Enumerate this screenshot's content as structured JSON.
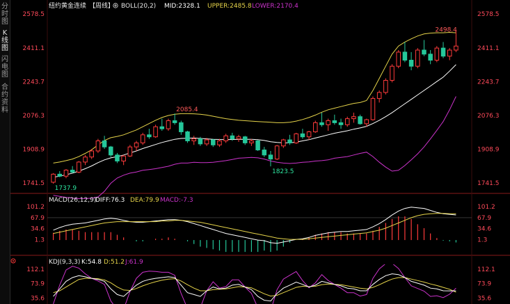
{
  "sidebar": {
    "tabs": [
      {
        "label": "分时图",
        "chars": [
          "分",
          "时",
          "图"
        ],
        "active": false
      },
      {
        "label": "K线图",
        "chars": [
          "K",
          "线",
          "图"
        ],
        "active": true
      },
      {
        "label": "闪电图",
        "chars": [
          "闪",
          "电",
          "图"
        ],
        "active": false
      },
      {
        "label": "合约资料",
        "chars": [
          "合",
          "约",
          "资",
          "料"
        ],
        "active": false
      }
    ]
  },
  "main_panel": {
    "symbol": "纽约黄金连续",
    "period": "【周线】",
    "bookmark_icon": "circle-plus-icon",
    "boll_label": "BOLL(20,2)",
    "mid_label": "MID:2328.1",
    "upper_label": "UPPER:2485.8",
    "lower_label": "LOWER:2170.4",
    "y_ticks_left": [
      "2578.5",
      "2411.1",
      "2243.7",
      "2076.3",
      "1908.9",
      "1741.5"
    ],
    "y_ticks_right": [
      "2578.5",
      "2411.1",
      "2243.7",
      "2076.3",
      "1908.9",
      "1741.5"
    ],
    "annotations": {
      "high_recent": "2498.4",
      "high_mid": "2085.4",
      "low_mid": "1823.5",
      "low_start": "1737.9"
    }
  },
  "macd_panel": {
    "label": "MACD(26,12,9)",
    "diff_label": "DIFF:76.3",
    "dea_label": "DEA:79.9",
    "macd_label": "MACD:-7.3",
    "y_ticks_left": [
      "101.2",
      "67.9",
      "34.6",
      "1.3"
    ],
    "y_ticks_right": [
      "101.2",
      "67.9",
      "34.6",
      "1.3"
    ]
  },
  "kdj_panel": {
    "label": "KDJ(9,3,3)",
    "k_label": "K:54.8",
    "d_label": "D:51.2",
    "j_label": "J:61.9",
    "y_ticks_left": [
      "112.1",
      "73.9",
      "35.6"
    ],
    "y_ticks_right": [
      "112.1",
      "73.9",
      "35.6"
    ]
  },
  "colors": {
    "background": "#000000",
    "up": "#ff3b3b",
    "down": "#25c79a",
    "text": "#e6e6e6",
    "axis_text": "#ff4a5a",
    "mid": "#ffffff",
    "upper": "#e6d44a",
    "lower": "#cc33cc",
    "diff": "#ffffff",
    "dea": "#e6d44a",
    "macd_label": "#cc33cc",
    "j": "#cc33cc",
    "divider": "#8a1a1a",
    "annotation_high": "#ff5a5a",
    "annotation_low": "#2ee6a0"
  },
  "chart_data": [
    {
      "type": "candlestick",
      "title": "纽约黄金连续【周线】",
      "ylim": [
        1700,
        2600
      ],
      "ohlc": [
        [
          1745,
          1790,
          1737.9,
          1785
        ],
        [
          1785,
          1800,
          1770,
          1775
        ],
        [
          1775,
          1810,
          1765,
          1805
        ],
        [
          1805,
          1825,
          1790,
          1795
        ],
        [
          1795,
          1850,
          1790,
          1845
        ],
        [
          1845,
          1880,
          1830,
          1870
        ],
        [
          1870,
          1910,
          1860,
          1900
        ],
        [
          1900,
          1960,
          1890,
          1950
        ],
        [
          1950,
          1975,
          1910,
          1920
        ],
        [
          1920,
          1925,
          1870,
          1880
        ],
        [
          1880,
          1890,
          1840,
          1850
        ],
        [
          1850,
          1880,
          1830,
          1875
        ],
        [
          1875,
          1930,
          1870,
          1920
        ],
        [
          1920,
          1950,
          1900,
          1940
        ],
        [
          1940,
          1990,
          1930,
          1980
        ],
        [
          1980,
          2010,
          1960,
          1970
        ],
        [
          1970,
          2030,
          1965,
          2020
        ],
        [
          2020,
          2060,
          2000,
          2010
        ],
        [
          2010,
          2060,
          2000,
          2050
        ],
        [
          2050,
          2085.4,
          2030,
          2040
        ],
        [
          2040,
          2050,
          1980,
          1995
        ],
        [
          1995,
          2000,
          1940,
          1950
        ],
        [
          1950,
          1975,
          1930,
          1960
        ],
        [
          1960,
          1970,
          1925,
          1935
        ],
        [
          1935,
          1965,
          1925,
          1955
        ],
        [
          1955,
          1960,
          1920,
          1930
        ],
        [
          1930,
          1960,
          1920,
          1950
        ],
        [
          1950,
          1985,
          1940,
          1975
        ],
        [
          1975,
          1990,
          1950,
          1960
        ],
        [
          1960,
          1980,
          1945,
          1970
        ],
        [
          1970,
          1975,
          1930,
          1940
        ],
        [
          1940,
          1960,
          1925,
          1950
        ],
        [
          1950,
          1955,
          1900,
          1905
        ],
        [
          1905,
          1920,
          1870,
          1880
        ],
        [
          1880,
          1900,
          1823.5,
          1860
        ],
        [
          1860,
          1930,
          1855,
          1925
        ],
        [
          1925,
          1960,
          1915,
          1955
        ],
        [
          1955,
          1980,
          1930,
          1940
        ],
        [
          1940,
          1990,
          1935,
          1985
        ],
        [
          1985,
          2010,
          1960,
          1970
        ],
        [
          1970,
          2000,
          1955,
          1995
        ],
        [
          1995,
          2050,
          1990,
          2040
        ],
        [
          2040,
          2090,
          2020,
          2030
        ],
        [
          2030,
          2060,
          2000,
          2050
        ],
        [
          2050,
          2080,
          2030,
          2040
        ],
        [
          2040,
          2060,
          2010,
          2030
        ],
        [
          2030,
          2070,
          2020,
          2060
        ],
        [
          2060,
          2090,
          2040,
          2070
        ],
        [
          2070,
          2080,
          2030,
          2035
        ],
        [
          2035,
          2060,
          2020,
          2055
        ],
        [
          2055,
          2170,
          2050,
          2160
        ],
        [
          2160,
          2200,
          2140,
          2190
        ],
        [
          2190,
          2260,
          2180,
          2250
        ],
        [
          2250,
          2330,
          2240,
          2320
        ],
        [
          2320,
          2400,
          2310,
          2390
        ],
        [
          2390,
          2440,
          2340,
          2350
        ],
        [
          2350,
          2390,
          2300,
          2320
        ],
        [
          2320,
          2410,
          2310,
          2400
        ],
        [
          2400,
          2450,
          2370,
          2380
        ],
        [
          2380,
          2400,
          2330,
          2350
        ],
        [
          2350,
          2420,
          2340,
          2410
        ],
        [
          2410,
          2440,
          2360,
          2370
        ],
        [
          2370,
          2410,
          2350,
          2400
        ],
        [
          2400,
          2498.4,
          2390,
          2420
        ]
      ],
      "mid": [
        1770,
        1775,
        1782,
        1790,
        1800,
        1812,
        1826,
        1842,
        1856,
        1866,
        1872,
        1880,
        1890,
        1900,
        1912,
        1922,
        1932,
        1942,
        1950,
        1958,
        1962,
        1963,
        1964,
        1962,
        1960,
        1958,
        1957,
        1956,
        1957,
        1958,
        1958,
        1958,
        1956,
        1952,
        1946,
        1942,
        1940,
        1940,
        1944,
        1950,
        1956,
        1964,
        1972,
        1980,
        1988,
        1994,
        2000,
        2008,
        2014,
        2022,
        2036,
        2052,
        2070,
        2090,
        2112,
        2134,
        2156,
        2178,
        2200,
        2222,
        2244,
        2266,
        2296,
        2328.1
      ],
      "upper": [
        1840,
        1845,
        1852,
        1860,
        1872,
        1888,
        1906,
        1930,
        1952,
        1966,
        1972,
        1980,
        1992,
        2004,
        2020,
        2036,
        2052,
        2066,
        2076,
        2082,
        2085,
        2085,
        2084,
        2082,
        2078,
        2072,
        2066,
        2060,
        2056,
        2052,
        2050,
        2048,
        2046,
        2044,
        2042,
        2040,
        2040,
        2042,
        2048,
        2056,
        2066,
        2078,
        2092,
        2104,
        2112,
        2120,
        2128,
        2136,
        2140,
        2150,
        2200,
        2260,
        2320,
        2380,
        2420,
        2440,
        2456,
        2470,
        2480,
        2484,
        2486,
        2486,
        2488,
        2485.8
      ],
      "lower": [
        1680,
        1675,
        1670,
        1666,
        1664,
        1664,
        1666,
        1672,
        1700,
        1740,
        1766,
        1780,
        1790,
        1796,
        1804,
        1808,
        1812,
        1818,
        1824,
        1834,
        1840,
        1840,
        1844,
        1842,
        1842,
        1844,
        1848,
        1852,
        1858,
        1864,
        1866,
        1868,
        1866,
        1860,
        1850,
        1844,
        1840,
        1838,
        1840,
        1844,
        1846,
        1850,
        1852,
        1856,
        1864,
        1868,
        1872,
        1880,
        1888,
        1894,
        1872,
        1844,
        1820,
        1800,
        1804,
        1828,
        1856,
        1886,
        1920,
        1960,
        2002,
        2046,
        2104,
        2170.4
      ]
    },
    {
      "type": "macd",
      "title": "MACD(26,12,9)",
      "ylim": [
        -40,
        110
      ],
      "diff": [
        30,
        38,
        44,
        48,
        50,
        52,
        56,
        60,
        64,
        66,
        64,
        60,
        56,
        54,
        54,
        56,
        58,
        60,
        62,
        62,
        60,
        56,
        50,
        44,
        38,
        32,
        26,
        20,
        16,
        12,
        8,
        4,
        0,
        -2,
        -8,
        -10,
        -6,
        -2,
        2,
        4,
        8,
        14,
        18,
        22,
        24,
        26,
        26,
        28,
        30,
        32,
        40,
        50,
        62,
        76,
        88,
        96,
        100,
        98,
        96,
        90,
        84,
        80,
        78,
        76.3
      ],
      "dea": [
        20,
        24,
        28,
        32,
        36,
        40,
        44,
        48,
        52,
        54,
        56,
        56,
        56,
        56,
        56,
        56,
        56,
        58,
        58,
        60,
        60,
        58,
        56,
        54,
        50,
        46,
        42,
        38,
        34,
        30,
        26,
        22,
        18,
        14,
        10,
        6,
        4,
        2,
        2,
        2,
        4,
        6,
        8,
        10,
        12,
        14,
        16,
        18,
        20,
        22,
        26,
        30,
        36,
        44,
        52,
        60,
        68,
        74,
        78,
        80,
        81,
        81,
        80,
        79.9
      ],
      "macd": [
        22,
        28,
        32,
        32,
        28,
        24,
        24,
        24,
        24,
        24,
        16,
        8,
        0,
        -4,
        -4,
        0,
        4,
        4,
        8,
        4,
        0,
        -4,
        -12,
        -20,
        -24,
        -28,
        -32,
        -36,
        -36,
        -36,
        -36,
        -36,
        -36,
        -32,
        -36,
        -32,
        -20,
        -8,
        0,
        4,
        8,
        16,
        20,
        24,
        24,
        24,
        20,
        20,
        20,
        20,
        28,
        40,
        52,
        64,
        72,
        72,
        64,
        48,
        36,
        20,
        6,
        -2,
        -4,
        -7.3
      ]
    },
    {
      "type": "kdj",
      "title": "KDJ(9,3,3)",
      "ylim": [
        20,
        125
      ],
      "k": [
        40,
        60,
        80,
        90,
        95,
        92,
        88,
        85,
        80,
        60,
        45,
        40,
        55,
        70,
        80,
        85,
        88,
        90,
        92,
        90,
        70,
        50,
        45,
        40,
        55,
        65,
        60,
        62,
        70,
        72,
        65,
        58,
        40,
        30,
        28,
        48,
        62,
        70,
        78,
        72,
        65,
        70,
        80,
        76,
        72,
        68,
        62,
        60,
        55,
        55,
        72,
        85,
        95,
        100,
        98,
        90,
        80,
        75,
        70,
        62,
        60,
        55,
        54.8,
        54.8
      ],
      "d": [
        50,
        55,
        65,
        75,
        85,
        88,
        88,
        87,
        84,
        76,
        65,
        57,
        56,
        61,
        68,
        74,
        79,
        83,
        86,
        87,
        81,
        71,
        62,
        55,
        55,
        58,
        59,
        60,
        63,
        66,
        65,
        63,
        55,
        47,
        41,
        43,
        50,
        57,
        64,
        67,
        66,
        67,
        71,
        73,
        72,
        71,
        68,
        65,
        62,
        60,
        64,
        71,
        79,
        86,
        90,
        90,
        86,
        82,
        78,
        73,
        69,
        64,
        59,
        51.2
      ],
      "j": [
        20,
        70,
        110,
        120,
        115,
        100,
        88,
        81,
        72,
        28,
        5,
        6,
        53,
        88,
        104,
        107,
        106,
        104,
        104,
        96,
        48,
        8,
        11,
        10,
        55,
        79,
        62,
        66,
        84,
        84,
        65,
        48,
        10,
        -4,
        2,
        58,
        86,
        96,
        106,
        82,
        63,
        76,
        98,
        82,
        72,
        62,
        50,
        50,
        41,
        45,
        88,
        113,
        127,
        128,
        114,
        90,
        68,
        61,
        54,
        40,
        42,
        37,
        46,
        61.9
      ]
    }
  ]
}
